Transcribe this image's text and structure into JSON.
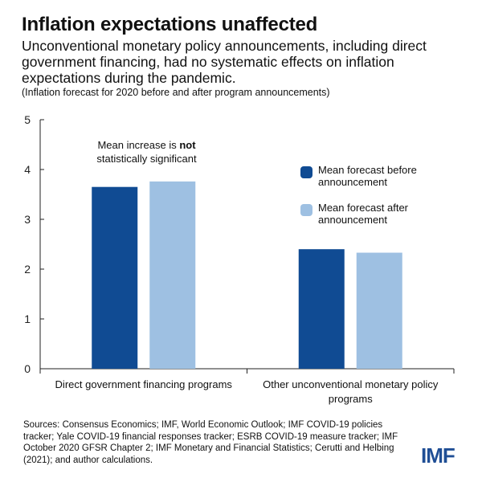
{
  "header": {
    "title": "Inflation expectations unaffected",
    "subtitle": "Unconventional monetary policy announcements, including direct government financing, had no systematic effects on inflation expectations during the pandemic.",
    "note": "(Inflation forecast for 2020 before and after program announcements)"
  },
  "annotation": {
    "before": "Mean increase is",
    "bold": "not",
    "after": "statistically significant"
  },
  "legend": {
    "items": [
      {
        "label": "Mean forecast before announcement",
        "color": "#104b93"
      },
      {
        "label": "Mean forecast after announcement",
        "color": "#9ec0e2"
      }
    ]
  },
  "chart_data": {
    "type": "bar",
    "title": "Inflation expectations unaffected",
    "categories": [
      "Direct government financing programs",
      "Other unconventional monetary policy programs"
    ],
    "series": [
      {
        "name": "Mean forecast before announcement",
        "values": [
          3.65,
          2.4
        ],
        "color": "#104b93"
      },
      {
        "name": "Mean forecast after announcement",
        "values": [
          3.76,
          2.33
        ],
        "color": "#9ec0e2"
      }
    ],
    "xlabel": "",
    "ylabel": "",
    "ylim": [
      0,
      5
    ],
    "yticks": [
      0,
      1,
      2,
      3,
      4,
      5
    ],
    "grid": false
  },
  "sources": "Sources: Consensus Economics; IMF, World Economic Outlook; IMF COVID-19 policies tracker; Yale COVID-19 financial responses tracker; ESRB COVID-19 measure tracker; IMF October 2020 GFSR Chapter 2; IMF Monetary and Financial Statistics; Cerutti and Helbing (2021); and author calculations.",
  "logo": "IMF"
}
